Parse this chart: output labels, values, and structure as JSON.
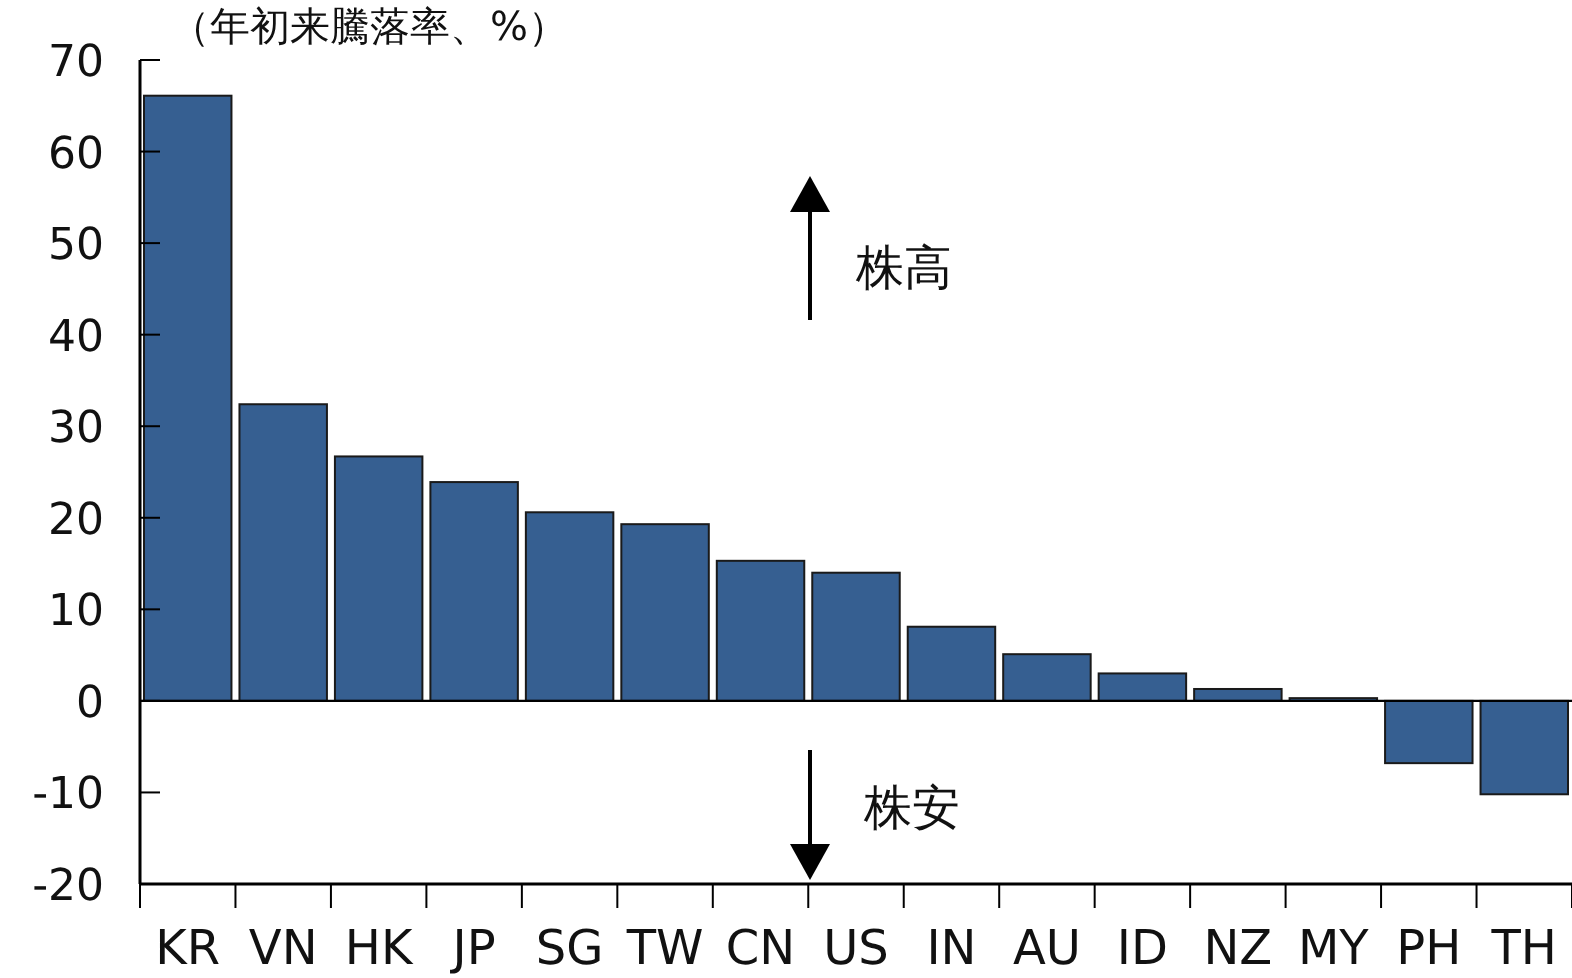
{
  "chart_data": {
    "type": "bar",
    "ylabel": "（年初来騰落率、%）",
    "categories": [
      "KR",
      "VN",
      "HK",
      "JP",
      "SG",
      "TW",
      "CN",
      "US",
      "IN",
      "AU",
      "ID",
      "NZ",
      "MY",
      "PH",
      "TH"
    ],
    "values": [
      66.1,
      32.4,
      26.7,
      23.9,
      20.6,
      19.3,
      15.3,
      14.0,
      8.1,
      5.1,
      3.0,
      1.3,
      0.3,
      -6.8,
      -10.2
    ],
    "color": "#365f91",
    "ylim": [
      -20,
      70
    ],
    "yticks": [
      -20,
      -10,
      0,
      10,
      20,
      30,
      40,
      50,
      60,
      70
    ],
    "annotations": [
      "株高",
      "株安"
    ]
  }
}
